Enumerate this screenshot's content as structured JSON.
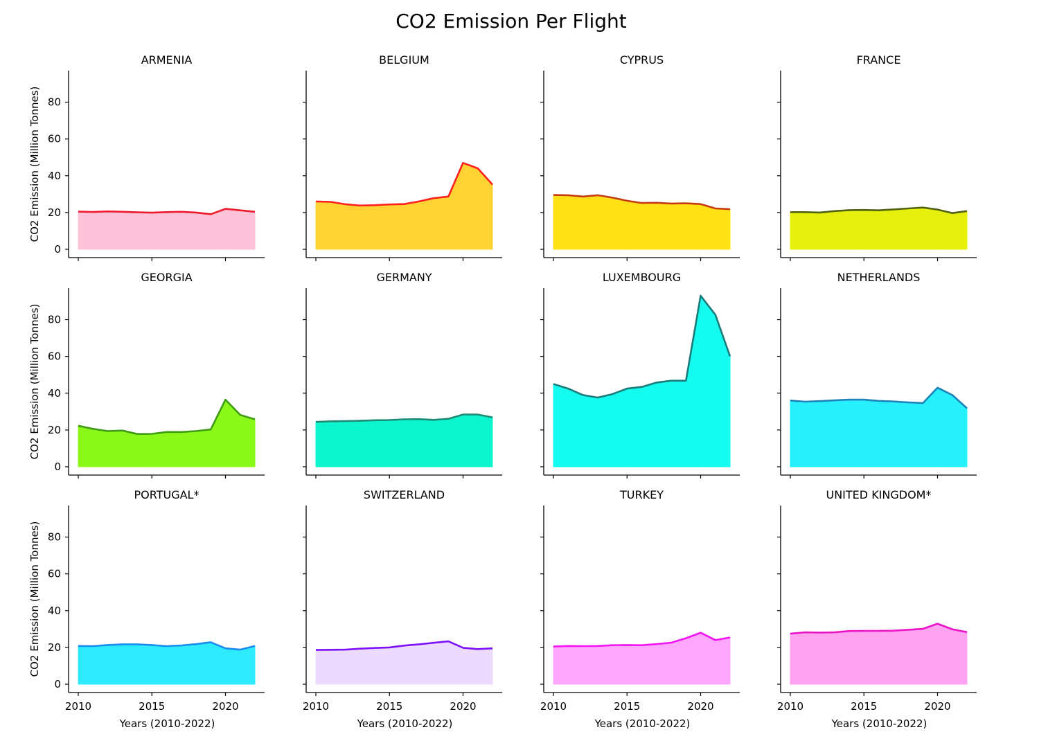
{
  "chart_data": {
    "type": "area",
    "title": "CO2 Emission Per Flight",
    "xlabel": "Years (2010-2022)",
    "ylabel": "CO2 Emission (Million Tonnes)",
    "xlim": [
      2010,
      2022
    ],
    "ylim": [
      0,
      95
    ],
    "xticks": [
      2010,
      2015,
      2020
    ],
    "yticks": [
      0,
      20,
      40,
      60,
      80
    ],
    "grid": false,
    "layout": "3x4 small multiples, shared axes",
    "x": [
      2010,
      2011,
      2012,
      2013,
      2014,
      2015,
      2016,
      2017,
      2018,
      2019,
      2020,
      2021,
      2022
    ],
    "panels": [
      {
        "name": "ARMENIA",
        "fill": "#ffc0d8",
        "line": "#ee1a2a",
        "values": [
          20.5,
          20.3,
          20.6,
          20.4,
          20.1,
          19.9,
          20.2,
          20.4,
          20.0,
          19.1,
          22.0,
          21.2,
          20.4
        ]
      },
      {
        "name": "BELGIUM",
        "fill": "#ffd12a",
        "line": "#ff1f1f",
        "values": [
          26.0,
          25.8,
          24.5,
          23.8,
          24.0,
          24.4,
          24.6,
          26.0,
          27.8,
          28.7,
          47.0,
          44.0,
          35.2
        ]
      },
      {
        "name": "CYPRUS",
        "fill": "#ffe00a",
        "line": "#c63a10",
        "values": [
          29.5,
          29.4,
          28.7,
          29.4,
          28.1,
          26.4,
          25.2,
          25.3,
          24.9,
          25.0,
          24.6,
          22.2,
          21.8
        ]
      },
      {
        "name": "FRANCE",
        "fill": "#e6f000",
        "line": "#4f6313",
        "values": [
          20.2,
          20.2,
          20.0,
          20.8,
          21.3,
          21.4,
          21.2,
          21.7,
          22.2,
          22.7,
          21.6,
          19.7,
          20.8
        ]
      },
      {
        "name": "GEORGIA",
        "fill": "#84f90e",
        "line": "#3f9c12",
        "values": [
          22.3,
          20.6,
          19.4,
          19.7,
          17.8,
          17.9,
          18.9,
          18.9,
          19.4,
          20.3,
          36.5,
          28.2,
          25.8
        ]
      },
      {
        "name": "GERMANY",
        "fill": "#00f5cc",
        "line": "#1c8a74",
        "values": [
          24.4,
          24.7,
          24.8,
          25.0,
          25.3,
          25.4,
          25.8,
          25.9,
          25.5,
          26.1,
          28.4,
          28.4,
          26.9
        ]
      },
      {
        "name": "LUXEMBOURG",
        "fill": "#08fbf0",
        "line": "#1a7c79",
        "values": [
          45.0,
          42.5,
          39.0,
          37.6,
          39.5,
          42.5,
          43.4,
          45.8,
          46.8,
          46.8,
          93.0,
          82.6,
          60.0
        ]
      },
      {
        "name": "NETHERLANDS",
        "fill": "#1af0fc",
        "line": "#1c84b9",
        "values": [
          36.0,
          35.4,
          35.7,
          36.1,
          36.5,
          36.5,
          35.8,
          35.5,
          35.0,
          34.6,
          43.0,
          39.0,
          31.8
        ]
      },
      {
        "name": "PORTUGAL*",
        "fill": "#22eafc",
        "line": "#1a8cf0",
        "values": [
          20.8,
          20.7,
          21.3,
          21.7,
          21.7,
          21.3,
          20.7,
          21.1,
          21.8,
          22.8,
          19.5,
          18.8,
          20.8
        ]
      },
      {
        "name": "SWITZERLAND",
        "fill": "#ebdaff",
        "line": "#7c10ff",
        "values": [
          18.6,
          18.7,
          18.8,
          19.3,
          19.7,
          20.0,
          21.0,
          21.7,
          22.5,
          23.3,
          19.8,
          19.1,
          19.5
        ]
      },
      {
        "name": "TURKEY",
        "fill": "#ffa3ff",
        "line": "#f214f2",
        "values": [
          20.5,
          20.8,
          20.7,
          20.8,
          21.2,
          21.3,
          21.2,
          21.8,
          22.6,
          25.0,
          28.0,
          24.0,
          25.4
        ]
      },
      {
        "name": "UNITED KINGDOM*",
        "fill": "#ff9ef0",
        "line": "#ec12c8",
        "values": [
          27.5,
          28.2,
          28.1,
          28.2,
          28.9,
          29.0,
          29.0,
          29.1,
          29.6,
          30.1,
          32.9,
          29.9,
          28.3
        ]
      }
    ]
  }
}
